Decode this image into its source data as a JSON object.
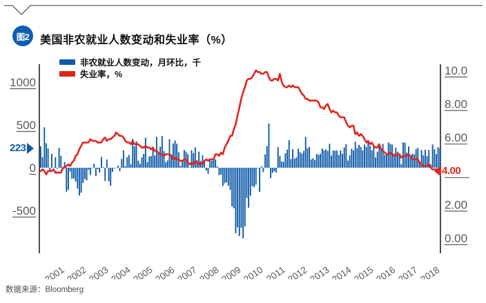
{
  "header": {
    "badge": "图2",
    "title": "美国非农就业人数变动和失业率（%）"
  },
  "legend": {
    "items": [
      {
        "label": "非农就业人数变动，月环比，千",
        "color": "#0e5aa8"
      },
      {
        "label": "失业率，%",
        "color": "#e0251f"
      }
    ]
  },
  "markers": {
    "latest_payroll": "223",
    "latest_rate": "4.00"
  },
  "footer": {
    "source": "数据来源：Bloomberg"
  },
  "colors": {
    "bar_blue": "#0e5aa8",
    "line_red": "#e0251f",
    "badge_blue": "#0d5fb0",
    "tick_gray": "#58595b",
    "axis_black": "#231f20"
  },
  "chart_data": {
    "type": "combo",
    "title": "美国非农就业人数变动和失业率（%）",
    "x_start": "2000-01",
    "x_end": "2018-02",
    "x_tick_labels": [
      "2001",
      "2002",
      "2003",
      "2004",
      "2005",
      "2006",
      "2007",
      "2008",
      "2009",
      "2010",
      "2011",
      "2012",
      "2013",
      "2014",
      "2015",
      "2016",
      "2017",
      "2018"
    ],
    "left_axis": {
      "title": "非农就业人数变动，月环比，千",
      "ticks": [
        1000,
        500,
        0,
        -500
      ],
      "range": [
        -1000,
        1210
      ]
    },
    "right_axis": {
      "title": "失业率，%",
      "ticks": [
        "10.0",
        "8.00",
        "6.00",
        "4.00",
        "2.00",
        "0.00"
      ],
      "range": [
        -0.9,
        10.4
      ]
    },
    "grid": false,
    "legend_position": "top-left",
    "series": [
      {
        "name": "非农就业人数变动，月环比，千",
        "type": "bar",
        "axis": "left",
        "color": "#0e5aa8",
        "values": [
          249,
          121,
          472,
          286,
          225,
          -46,
          163,
          3,
          122,
          -11,
          231,
          138,
          -30,
          67,
          -281,
          -257,
          -44,
          -128,
          -125,
          -160,
          -244,
          -325,
          -292,
          -178,
          -132,
          -147,
          -24,
          -85,
          -7,
          45,
          -97,
          -16,
          -55,
          126,
          8,
          -156,
          95,
          -158,
          -212,
          -49,
          -6,
          -2,
          25,
          -42,
          103,
          203,
          18,
          124,
          150,
          43,
          338,
          250,
          310,
          81,
          47,
          121,
          160,
          351,
          64,
          132,
          136,
          240,
          142,
          360,
          169,
          246,
          369,
          195,
          63,
          84,
          334,
          158,
          283,
          317,
          280,
          181,
          22,
          78,
          208,
          188,
          158,
          2,
          205,
          171,
          238,
          88,
          188,
          78,
          144,
          71,
          -33,
          -71,
          85,
          82,
          118,
          97,
          15,
          -86,
          -80,
          -214,
          -182,
          -172,
          -210,
          -259,
          -452,
          -474,
          -765,
          -697,
          -798,
          -701,
          -826,
          -684,
          -354,
          -467,
          -327,
          -216,
          -227,
          -198,
          -6,
          -283,
          18,
          -50,
          156,
          251,
          516,
          -122,
          -61,
          -42,
          -57,
          241,
          137,
          71,
          70,
          168,
          212,
          322,
          102,
          217,
          106,
          122,
          221,
          183,
          164,
          196,
          360,
          226,
          243,
          96,
          110,
          88,
          160,
          150,
          161,
          225,
          203,
          214,
          197,
          280,
          141,
          203,
          199,
          201,
          149,
          202,
          164,
          237,
          274,
          84,
          144,
          222,
          203,
          304,
          229,
          267,
          243,
          203,
          271,
          243,
          321,
          256,
          201,
          266,
          119,
          187,
          260,
          206,
          277,
          151,
          149,
          295,
          280,
          271,
          168,
          233,
          186,
          144,
          43,
          297,
          291,
          176,
          249,
          124,
          164,
          155,
          216,
          232,
          50,
          207,
          145,
          210,
          138,
          208,
          38,
          271,
          216,
          160,
          239,
          223
        ]
      },
      {
        "name": "失业率，%",
        "type": "line",
        "axis": "right",
        "color": "#e0251f",
        "values": [
          4.0,
          4.1,
          4.0,
          3.8,
          4.0,
          4.0,
          4.0,
          4.1,
          3.9,
          3.9,
          3.9,
          3.9,
          4.2,
          4.2,
          4.3,
          4.4,
          4.3,
          4.5,
          4.6,
          4.9,
          5.0,
          5.3,
          5.5,
          5.7,
          5.7,
          5.7,
          5.7,
          5.9,
          5.8,
          5.8,
          5.8,
          5.7,
          5.7,
          5.7,
          5.9,
          6.0,
          5.8,
          5.9,
          5.9,
          6.0,
          6.1,
          6.3,
          6.2,
          6.1,
          6.1,
          6.0,
          5.8,
          5.7,
          5.7,
          5.6,
          5.8,
          5.6,
          5.6,
          5.6,
          5.5,
          5.4,
          5.4,
          5.5,
          5.4,
          5.4,
          5.3,
          5.4,
          5.2,
          5.2,
          5.1,
          5.0,
          5.0,
          4.9,
          5.0,
          5.0,
          5.0,
          4.9,
          4.7,
          4.8,
          4.7,
          4.7,
          4.6,
          4.6,
          4.7,
          4.7,
          4.5,
          4.4,
          4.5,
          4.4,
          4.6,
          4.5,
          4.4,
          4.5,
          4.4,
          4.6,
          4.7,
          4.6,
          4.7,
          4.7,
          4.7,
          5.0,
          5.0,
          4.9,
          5.1,
          5.0,
          5.4,
          5.6,
          5.8,
          6.1,
          6.1,
          6.5,
          6.8,
          7.3,
          7.8,
          8.3,
          8.7,
          9.0,
          9.4,
          9.5,
          9.5,
          9.6,
          9.8,
          10.0,
          9.9,
          9.9,
          9.8,
          9.8,
          9.9,
          9.9,
          9.6,
          9.4,
          9.4,
          9.5,
          9.5,
          9.4,
          9.8,
          9.3,
          9.1,
          9.0,
          9.0,
          9.1,
          9.0,
          9.1,
          9.0,
          9.0,
          9.0,
          8.8,
          8.6,
          8.5,
          8.3,
          8.3,
          8.2,
          8.2,
          8.2,
          8.2,
          8.2,
          8.1,
          7.8,
          7.8,
          7.7,
          7.9,
          8.0,
          7.7,
          7.5,
          7.6,
          7.5,
          7.5,
          7.3,
          7.2,
          7.2,
          7.2,
          6.9,
          6.7,
          6.6,
          6.7,
          6.7,
          6.2,
          6.3,
          6.1,
          6.2,
          6.1,
          5.9,
          5.7,
          5.8,
          5.6,
          5.7,
          5.5,
          5.4,
          5.4,
          5.6,
          5.3,
          5.2,
          5.1,
          5.0,
          5.0,
          5.1,
          5.0,
          4.9,
          4.9,
          5.0,
          5.0,
          4.8,
          4.9,
          4.9,
          4.9,
          5.0,
          4.9,
          4.7,
          4.7,
          4.7,
          4.7,
          4.5,
          4.4,
          4.3,
          4.3,
          4.3,
          4.4,
          4.2,
          4.1,
          4.1,
          4.1,
          4.1,
          4.0
        ]
      }
    ]
  }
}
